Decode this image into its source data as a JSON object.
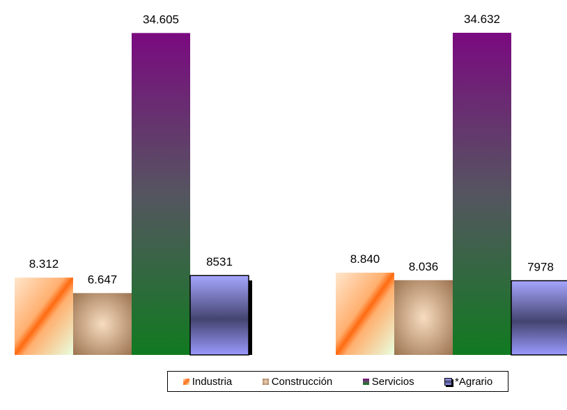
{
  "chart_data": {
    "type": "bar",
    "title": "",
    "xlabel": "",
    "ylabel": "",
    "categories": [
      "",
      ""
    ],
    "ylim": [
      0,
      36000
    ],
    "grid": false,
    "legend_position": "bottom",
    "series": [
      {
        "name": "Industria",
        "values": [
          8312,
          8840
        ],
        "labels": [
          "8.312",
          "8.840"
        ],
        "color": "#ff6a1a"
      },
      {
        "name": "Construcción",
        "values": [
          6647,
          8036
        ],
        "labels": [
          "6.647",
          "8.036"
        ],
        "color": "#b88a60"
      },
      {
        "name": "Servicios",
        "values": [
          34605,
          34632
        ],
        "labels": [
          "34.605",
          "34.632"
        ],
        "color": "#7a1a7a"
      },
      {
        "name": "*Agrario",
        "values": [
          8531,
          7978
        ],
        "labels": [
          "8531",
          "7978"
        ],
        "color": "#8f8fff"
      }
    ]
  }
}
